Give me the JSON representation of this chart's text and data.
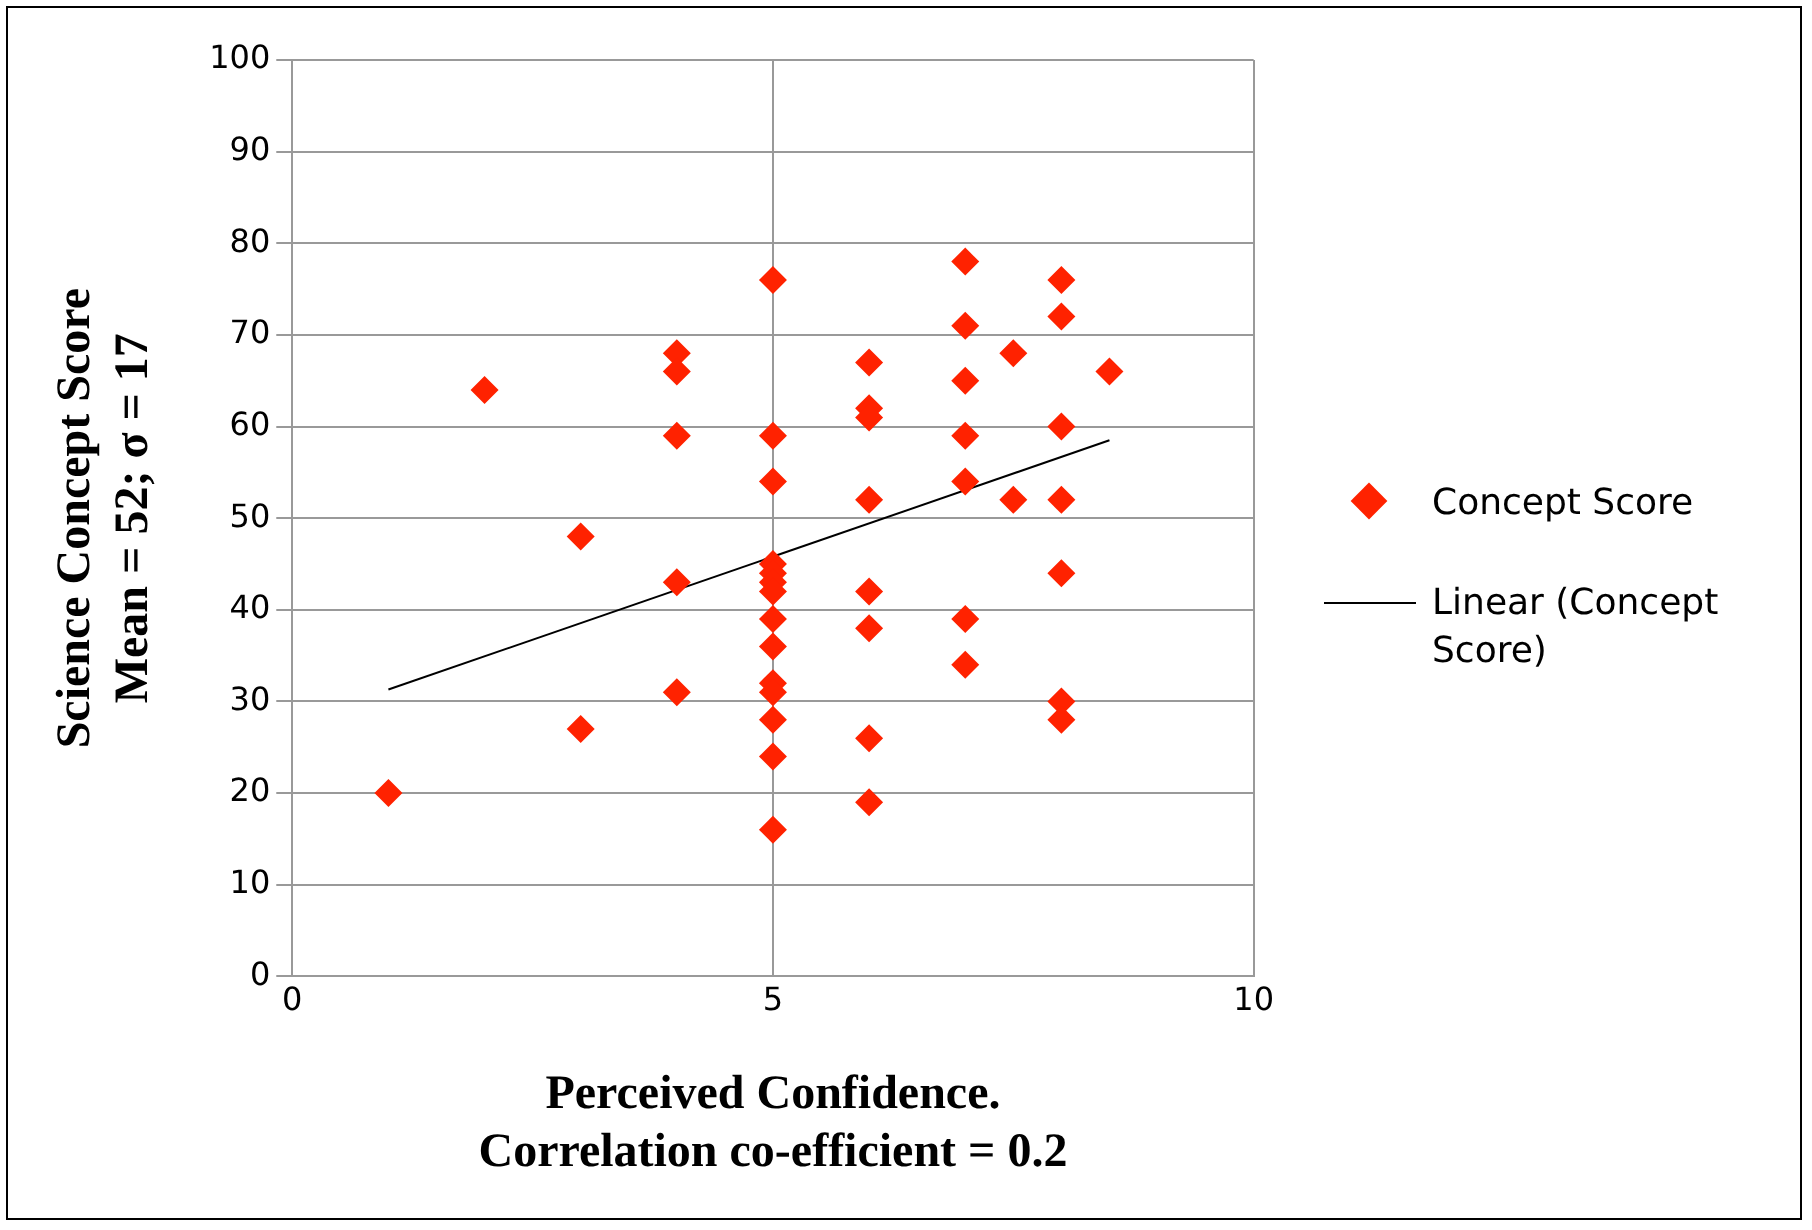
{
  "chart_data": {
    "type": "scatter",
    "xlabel": "Perceived Confidence.\nCorrelation co-efficient = 0.2",
    "ylabel": "Science Concept Score\nMean = 52; σ = 17",
    "xlim": [
      0,
      10
    ],
    "xticks": [
      0,
      5,
      10
    ],
    "ylim": [
      0,
      100
    ],
    "yticks": [
      0,
      10,
      20,
      30,
      40,
      50,
      60,
      70,
      80,
      90,
      100
    ],
    "grid": true,
    "legend": "right",
    "marker": "diamond",
    "series": [
      {
        "name": "Concept Score",
        "color": "#ff2200",
        "x": [
          1,
          2,
          3,
          3,
          4,
          4,
          4,
          4,
          4,
          5,
          5,
          5,
          5,
          5,
          5,
          5,
          5,
          5,
          5,
          5,
          5,
          5,
          5,
          6,
          6,
          6,
          6,
          6,
          6,
          6,
          6,
          7,
          7,
          7,
          7,
          7,
          7,
          7,
          7.5,
          7.5,
          8,
          8,
          8,
          8,
          8,
          8,
          8,
          8.5
        ],
        "values": [
          20,
          64,
          48,
          27,
          68,
          66,
          59,
          43,
          31,
          76,
          59,
          54,
          45,
          44,
          43,
          42,
          39,
          36,
          32,
          31,
          28,
          24,
          16,
          67,
          62,
          61,
          52,
          42,
          38,
          26,
          19,
          78,
          71,
          65,
          59,
          54,
          39,
          34,
          68,
          52,
          76,
          72,
          60,
          52,
          44,
          30,
          28,
          66
        ]
      },
      {
        "name": "Linear (Concept Score)",
        "type": "line",
        "color": "#000000",
        "marker": "none",
        "x": [
          1,
          8.5
        ],
        "values": [
          31.3,
          58.5
        ]
      }
    ]
  }
}
